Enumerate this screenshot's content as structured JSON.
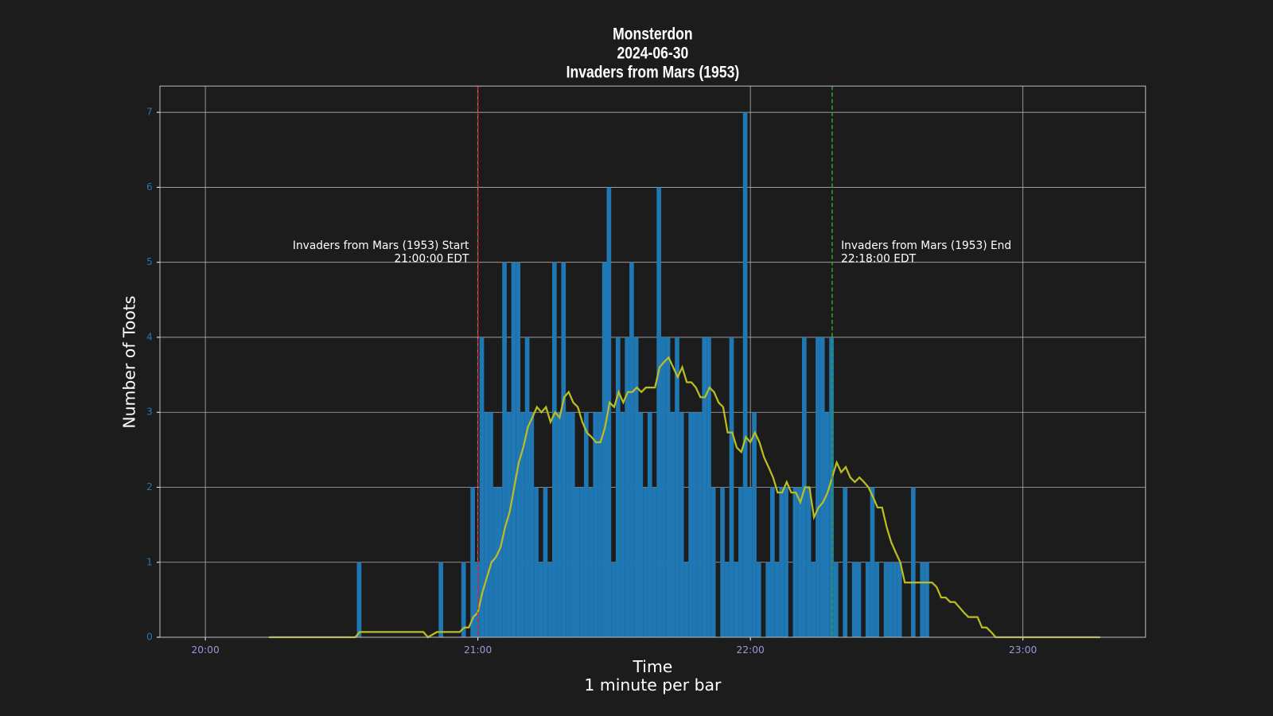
{
  "chart_data": {
    "type": "bar",
    "title": [
      "Monsterdon",
      "2024-06-30",
      "Invaders from Mars (1953)"
    ],
    "xlabel": [
      "Time",
      "1 minute per bar"
    ],
    "ylabel": "Number of Toots",
    "xlim": [
      "19:50",
      "23:27"
    ],
    "xticks": [
      "20:00",
      "21:00",
      "22:00",
      "23:00"
    ],
    "ylim": [
      0,
      7.35
    ],
    "yticks": [
      0,
      1,
      2,
      3,
      4,
      5,
      6,
      7
    ],
    "grid": true,
    "series": [
      {
        "type": "bar",
        "color": "#1f77b4",
        "x": [
          "20:33",
          "20:34",
          "20:35",
          "20:36",
          "20:37",
          "20:38",
          "20:39",
          "20:40",
          "20:41",
          "20:42",
          "20:43",
          "20:44",
          "20:45",
          "20:46",
          "20:47",
          "20:48",
          "20:49",
          "20:50",
          "20:51",
          "20:52",
          "20:53",
          "20:54",
          "20:55",
          "20:56",
          "20:57",
          "20:58",
          "20:59",
          "21:00",
          "21:01",
          "21:02",
          "21:03",
          "21:04",
          "21:05",
          "21:06",
          "21:07",
          "21:08",
          "21:09",
          "21:10",
          "21:11",
          "21:12",
          "21:13",
          "21:14",
          "21:15",
          "21:16",
          "21:17",
          "21:18",
          "21:19",
          "21:20",
          "21:21",
          "21:22",
          "21:23",
          "21:24",
          "21:25",
          "21:26",
          "21:27",
          "21:28",
          "21:29",
          "21:30",
          "21:31",
          "21:32",
          "21:33",
          "21:34",
          "21:35",
          "21:36",
          "21:37",
          "21:38",
          "21:39",
          "21:40",
          "21:41",
          "21:42",
          "21:43",
          "21:44",
          "21:45",
          "21:46",
          "21:47",
          "21:48",
          "21:49",
          "21:50",
          "21:51",
          "21:52",
          "21:53",
          "21:54",
          "21:55",
          "21:56",
          "21:57",
          "21:58",
          "21:59",
          "22:00",
          "22:01",
          "22:02",
          "22:03",
          "22:04",
          "22:05",
          "22:06",
          "22:07",
          "22:08",
          "22:09",
          "22:10",
          "22:11",
          "22:12",
          "22:13",
          "22:14",
          "22:15",
          "22:16",
          "22:17",
          "22:18",
          "22:19",
          "22:20",
          "22:21",
          "22:22",
          "22:23",
          "22:24",
          "22:25",
          "22:26",
          "22:27",
          "22:28",
          "22:29",
          "22:30",
          "22:31",
          "22:32",
          "22:33",
          "22:34",
          "22:35",
          "22:36",
          "22:37",
          "22:38"
        ],
        "values": [
          1,
          0,
          0,
          0,
          0,
          0,
          0,
          0,
          0,
          0,
          0,
          0,
          0,
          0,
          0,
          0,
          0,
          0,
          1,
          0,
          0,
          0,
          0,
          1,
          0,
          2,
          1,
          4,
          3,
          3,
          2,
          2,
          5,
          3,
          5,
          5,
          3,
          4,
          3,
          2,
          1,
          2,
          1,
          5,
          3,
          5,
          3,
          3,
          2,
          2,
          3,
          2,
          3,
          3,
          5,
          6,
          1,
          4,
          3,
          4,
          5,
          4,
          3,
          2,
          3,
          2,
          6,
          4,
          4,
          3,
          4,
          3,
          1,
          3,
          3,
          3,
          4,
          4,
          2,
          0,
          2,
          1,
          4,
          1,
          2,
          7,
          2,
          3,
          1,
          0,
          1,
          2,
          1,
          2,
          2,
          0,
          2,
          2,
          4,
          2,
          1,
          4,
          4,
          3,
          4,
          1,
          0,
          2,
          0,
          1,
          1,
          0,
          1,
          2,
          1,
          0,
          1,
          1,
          1,
          1,
          0,
          0,
          2,
          0,
          1,
          1
        ]
      },
      {
        "type": "line",
        "color": "#bcbd22",
        "x": [
          "20:14",
          "20:33",
          "20:34",
          "20:48",
          "20:49",
          "20:51",
          "20:56",
          "20:57",
          "20:58",
          "20:59",
          "21:00",
          "21:01",
          "21:02",
          "21:03",
          "21:04",
          "21:05",
          "21:06",
          "21:07",
          "21:08",
          "21:09",
          "21:10",
          "21:11",
          "21:12",
          "21:13",
          "21:14",
          "21:15",
          "21:16",
          "21:17",
          "21:18",
          "21:19",
          "21:20",
          "21:21",
          "21:22",
          "21:23",
          "21:24",
          "21:25",
          "21:26",
          "21:27",
          "21:28",
          "21:29",
          "21:30",
          "21:31",
          "21:32",
          "21:33",
          "21:34",
          "21:35",
          "21:36",
          "21:37",
          "21:38",
          "21:39",
          "21:40",
          "21:41",
          "21:42",
          "21:43",
          "21:44",
          "21:45",
          "21:46",
          "21:47",
          "21:48",
          "21:49",
          "21:50",
          "21:51",
          "21:52",
          "21:53",
          "21:54",
          "21:55",
          "21:56",
          "21:57",
          "21:58",
          "21:59",
          "22:00",
          "22:01",
          "22:02",
          "22:03",
          "22:04",
          "22:05",
          "22:06",
          "22:07",
          "22:08",
          "22:09",
          "22:10",
          "22:11",
          "22:12",
          "22:13",
          "22:14",
          "22:15",
          "22:16",
          "22:17",
          "22:18",
          "22:19",
          "22:20",
          "22:21",
          "22:22",
          "22:23",
          "22:24",
          "22:25",
          "22:26",
          "22:27",
          "22:28",
          "22:29",
          "22:30",
          "22:31",
          "22:32",
          "22:33",
          "22:34",
          "22:40",
          "22:41",
          "22:42",
          "22:43",
          "22:44",
          "22:45",
          "22:46",
          "22:47",
          "22:48",
          "22:50",
          "22:51",
          "22:52",
          "22:53",
          "22:54",
          "23:17"
        ],
        "values": [
          0,
          0,
          0.07,
          0.07,
          0,
          0.07,
          0.07,
          0.13,
          0.13,
          0.27,
          0.33,
          0.6,
          0.8,
          1.0,
          1.07,
          1.2,
          1.47,
          1.67,
          2.0,
          2.33,
          2.53,
          2.8,
          2.93,
          3.07,
          3.0,
          3.07,
          2.87,
          3.0,
          2.93,
          3.2,
          3.27,
          3.13,
          3.07,
          2.87,
          2.73,
          2.67,
          2.6,
          2.6,
          2.8,
          3.13,
          3.07,
          3.27,
          3.13,
          3.27,
          3.27,
          3.33,
          3.27,
          3.33,
          3.33,
          3.33,
          3.6,
          3.67,
          3.73,
          3.6,
          3.47,
          3.6,
          3.4,
          3.4,
          3.33,
          3.2,
          3.2,
          3.33,
          3.27,
          3.13,
          3.07,
          2.73,
          2.73,
          2.53,
          2.47,
          2.67,
          2.6,
          2.73,
          2.6,
          2.4,
          2.27,
          2.13,
          1.93,
          1.93,
          2.07,
          1.93,
          1.93,
          1.8,
          2.0,
          2.0,
          1.6,
          1.73,
          1.8,
          1.93,
          2.13,
          2.33,
          2.2,
          2.27,
          2.13,
          2.07,
          2.13,
          2.07,
          2.0,
          1.87,
          1.73,
          1.73,
          1.47,
          1.27,
          1.13,
          1.0,
          0.73,
          0.73,
          0.67,
          0.53,
          0.53,
          0.47,
          0.47,
          0.4,
          0.33,
          0.27,
          0.27,
          0.13,
          0.13,
          0.07,
          0,
          0
        ]
      }
    ],
    "annotations": [
      {
        "x": "21:00",
        "color": "#d62728",
        "align": "left-of",
        "text": [
          "Invaders from Mars (1953) Start",
          "21:00:00 EDT"
        ]
      },
      {
        "x": "22:18",
        "color": "#2ca02c",
        "align": "right-of",
        "text": [
          "Invaders from Mars (1953) End",
          "22:18:00 EDT"
        ]
      }
    ]
  }
}
